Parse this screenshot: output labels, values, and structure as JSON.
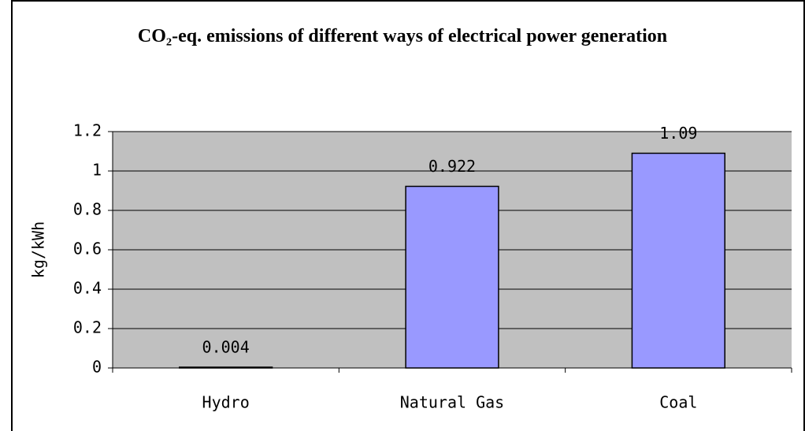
{
  "chart_data": {
    "type": "bar",
    "title": "CO₂-eq. emissions of different ways of electrical power generation",
    "y_label": "kg/kWh",
    "categories": [
      "Hydro",
      "Natural Gas",
      "Coal"
    ],
    "values": [
      0.004,
      0.922,
      1.09
    ],
    "color": "#9999ff",
    "ylim": [
      0,
      1.2
    ],
    "yticks": [
      0,
      0.2,
      0.4,
      0.6,
      0.8,
      1,
      1.2
    ],
    "grid": true
  }
}
